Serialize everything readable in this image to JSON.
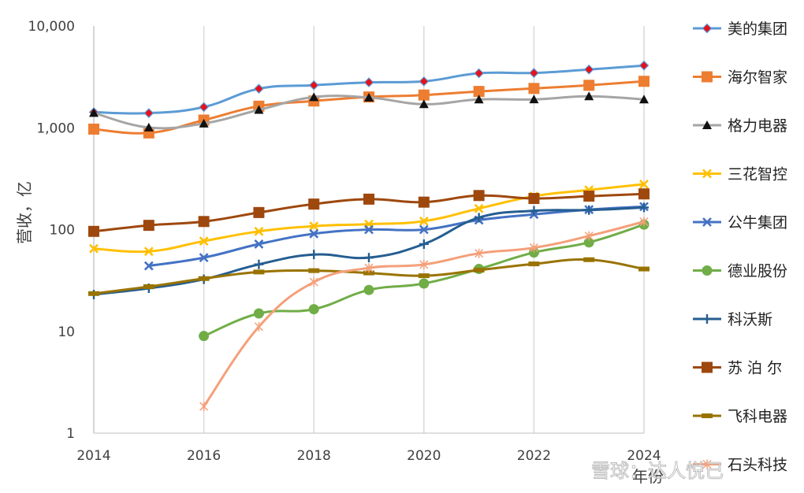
{
  "chart_data": {
    "type": "line",
    "xlabel": "年份",
    "ylabel": "营收，亿",
    "x": [
      2014,
      2015,
      2016,
      2017,
      2018,
      2019,
      2020,
      2021,
      2022,
      2023,
      2024
    ],
    "xlim": [
      2014,
      2024
    ],
    "ylim": [
      1,
      10000
    ],
    "yscale": "log",
    "x_ticks": [
      "2014",
      "2016",
      "2018",
      "2020",
      "2022",
      "2024"
    ],
    "y_ticks": [
      {
        "value": 1,
        "label": "1"
      },
      {
        "value": 10,
        "label": "10"
      },
      {
        "value": 100,
        "label": "100"
      },
      {
        "value": 1000,
        "label": "1,000"
      },
      {
        "value": 10000,
        "label": "10,000"
      }
    ],
    "grid": "vertical",
    "legend_position": "right",
    "series": [
      {
        "name": "美的集团",
        "color": "#5B9BD5",
        "marker": "diamond",
        "marker_fill": "#E8101A",
        "values": [
          1423,
          1394,
          1598,
          2419,
          2618,
          2794,
          2857,
          3434,
          3457,
          3737,
          4091
        ]
      },
      {
        "name": "海尔智家",
        "color": "#ED7D31",
        "marker": "square",
        "values": [
          970,
          890,
          1190,
          1630,
          1833,
          2008,
          2097,
          2275,
          2435,
          2614,
          2860
        ]
      },
      {
        "name": "格力电器",
        "color": "#A5A5A5",
        "marker": "triangle",
        "marker_fill": "#111111",
        "values": [
          1400,
          1006,
          1101,
          1500,
          2000,
          1982,
          1705,
          1897,
          1902,
          2039,
          1900
        ]
      },
      {
        "name": "三花智控",
        "color": "#FFC000",
        "marker": "x",
        "values": [
          65,
          61,
          77,
          96,
          108,
          113,
          121,
          161,
          213,
          245,
          279
        ]
      },
      {
        "name": "公牛集团",
        "color": "#4472C4",
        "marker": "x",
        "values": [
          null,
          44,
          53,
          72,
          91,
          100,
          100,
          124,
          141,
          157,
          168
        ]
      },
      {
        "name": "德业股份",
        "color": "#70AD47",
        "marker": "circle",
        "values": [
          null,
          null,
          9,
          15,
          16.5,
          25.5,
          29.5,
          41,
          59.5,
          74.8,
          112
        ]
      },
      {
        "name": "科沃斯",
        "color": "#255E91",
        "marker": "plus",
        "values": [
          23,
          26.5,
          32.5,
          45.5,
          56.9,
          53,
          72,
          131,
          153,
          155.5,
          165
        ]
      },
      {
        "name": "苏 泊 尔",
        "color": "#9E480E",
        "marker": "square",
        "values": [
          96,
          110,
          120,
          147,
          178,
          199,
          186,
          216,
          202,
          213,
          224
        ]
      },
      {
        "name": "飞科电器",
        "color": "#997300",
        "marker": "dash",
        "values": [
          23.5,
          27.5,
          33,
          38.3,
          39.5,
          37.5,
          35.2,
          40,
          46,
          50.6,
          41
        ]
      },
      {
        "name": "石头科技",
        "color": "#F4A07A",
        "marker": "asterisk",
        "values": [
          null,
          null,
          1.83,
          11.1,
          30.5,
          42.0,
          45.3,
          58.4,
          66.3,
          86.5,
          119.5
        ]
      }
    ]
  },
  "watermark": "雪球：达人悦己",
  "colors": {
    "grid": "#D9D9D9",
    "axis": "#BFBFBF",
    "text": "#404040"
  }
}
